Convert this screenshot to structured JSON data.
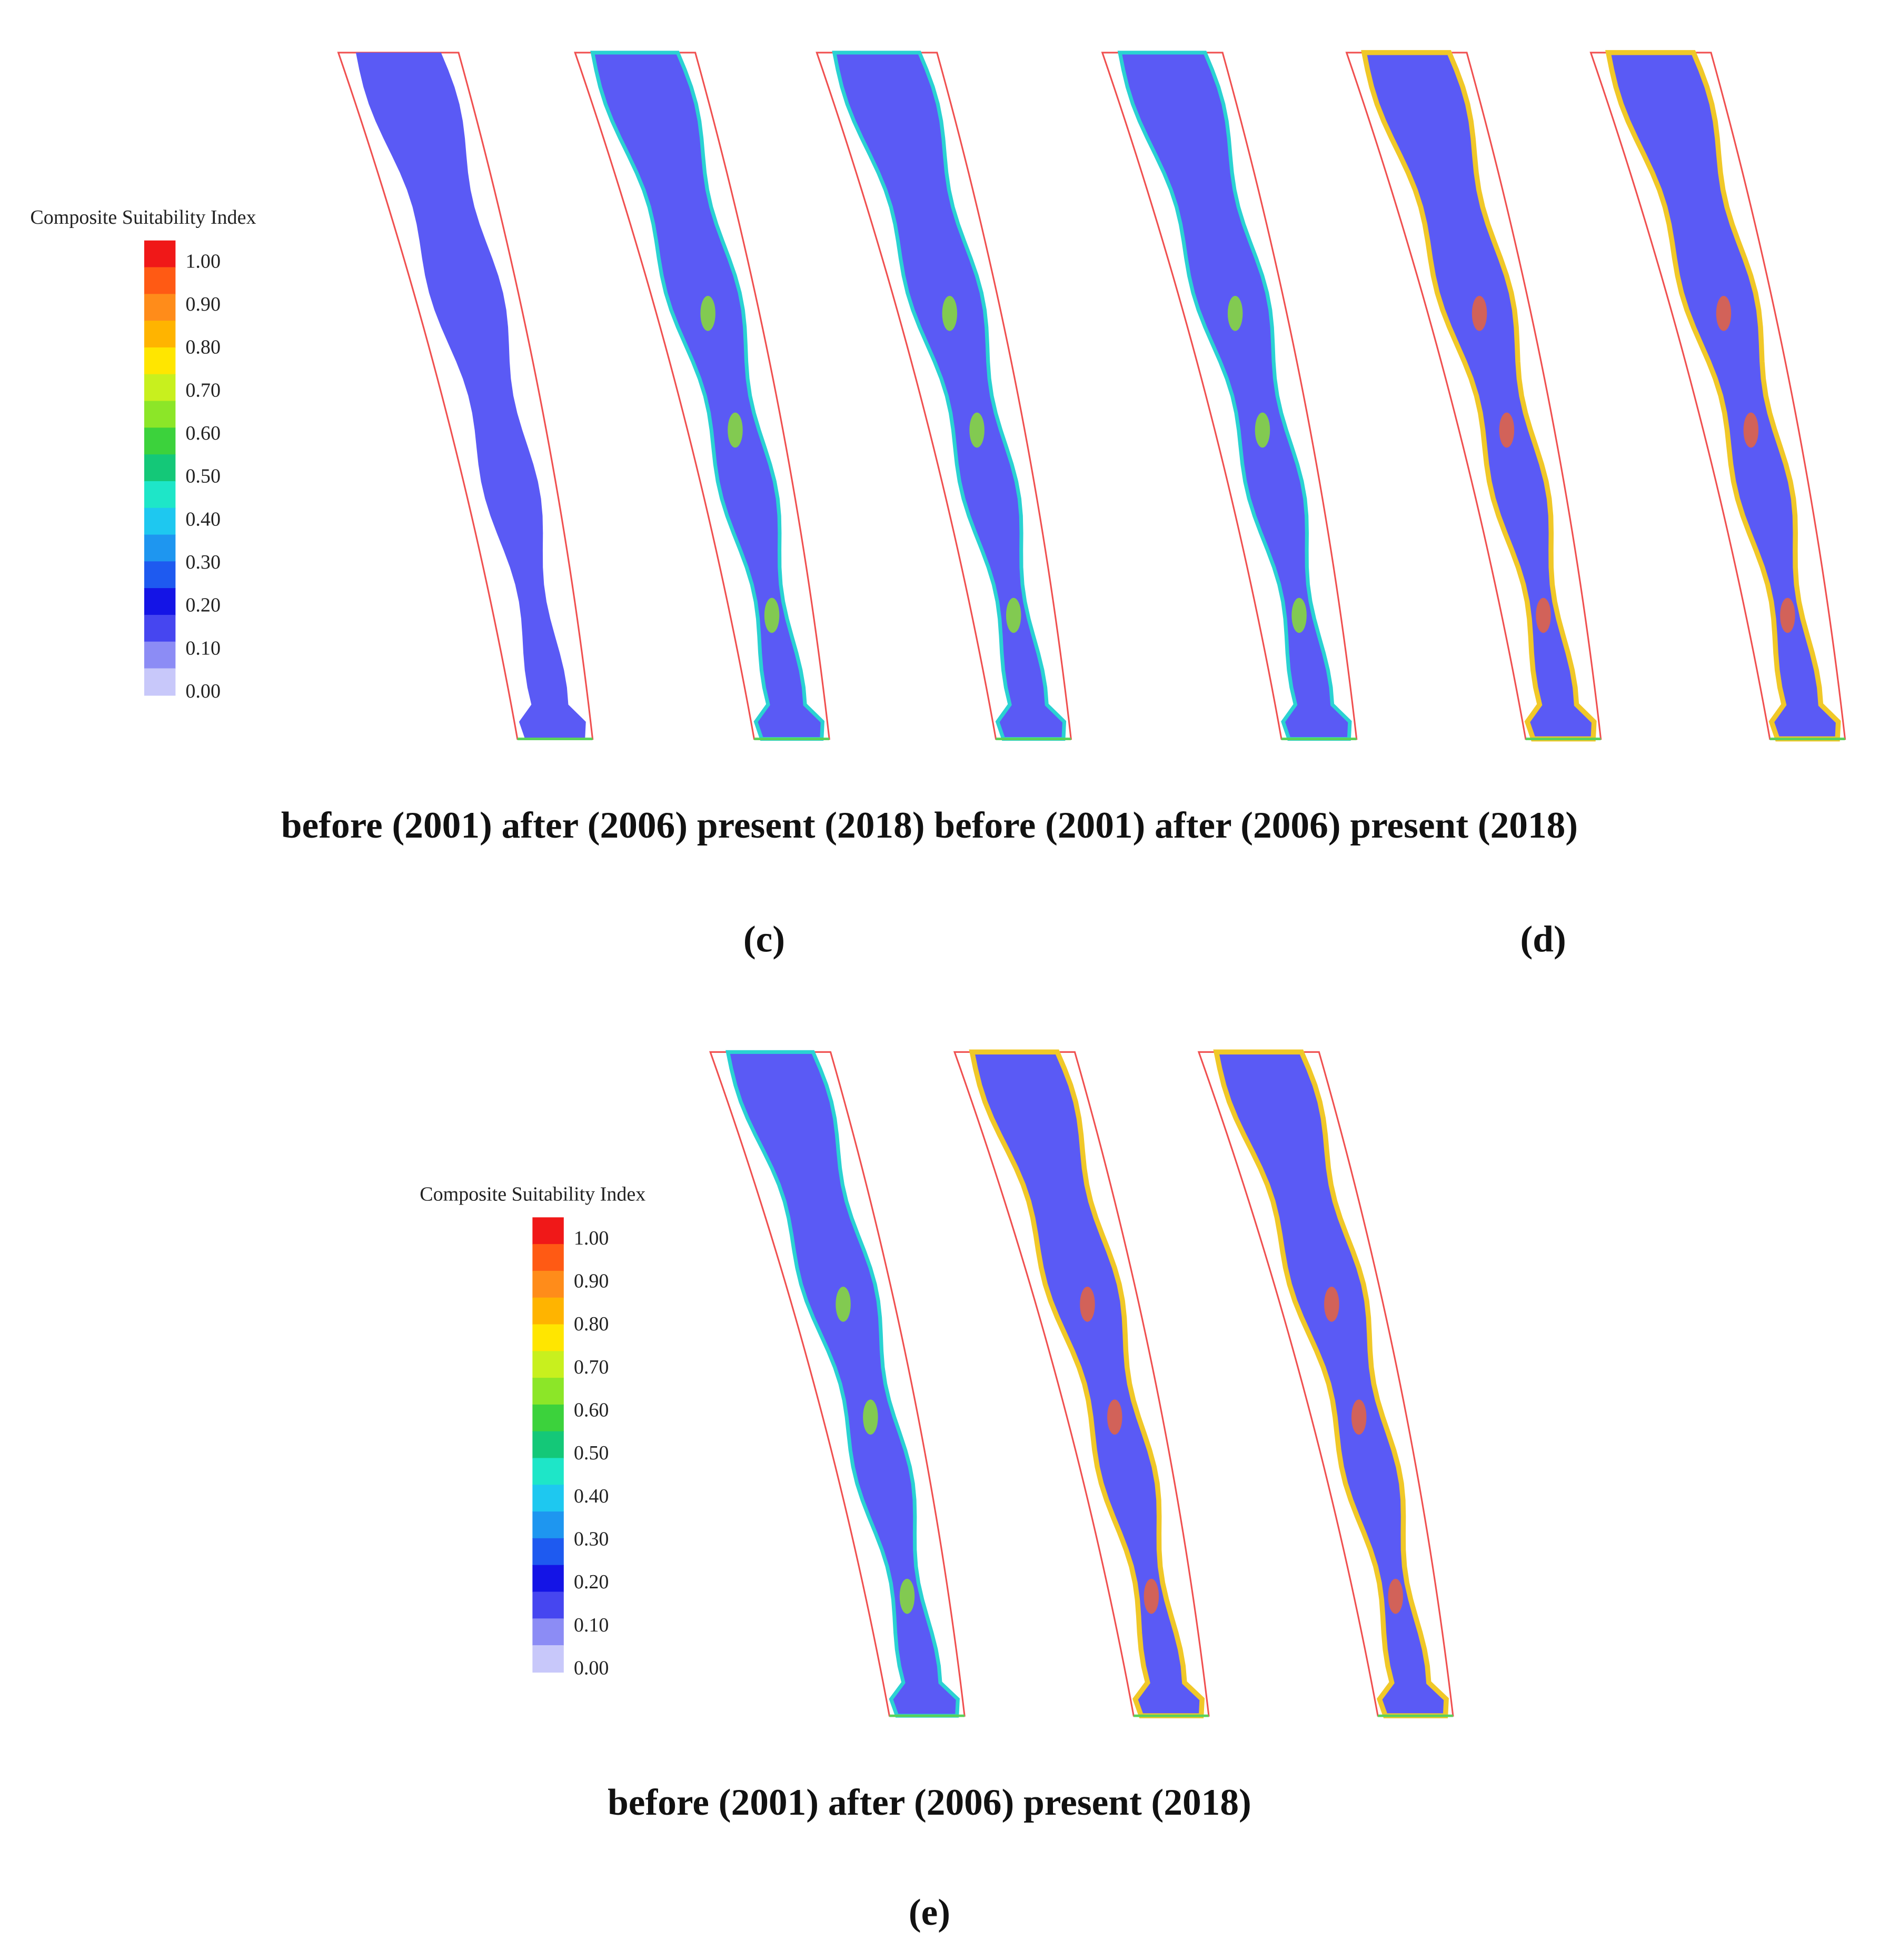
{
  "legends": [
    {
      "title": "Composite Suitability Index",
      "labels": [
        "1.00",
        "0.90",
        "0.80",
        "0.70",
        "0.60",
        "0.50",
        "0.40",
        "0.30",
        "0.20",
        "0.10",
        "0.00"
      ]
    },
    {
      "title": "Composite Suitability Index",
      "labels": [
        "1.00",
        "0.90",
        "0.80",
        "0.70",
        "0.60",
        "0.50",
        "0.40",
        "0.30",
        "0.20",
        "0.10",
        "0.00"
      ]
    }
  ],
  "rows": [
    {
      "caption": "before (2001) after (2006) present (2018) before (2001) after (2006) present (2018)",
      "panels": [
        "(c)",
        "(d)"
      ]
    },
    {
      "caption": "before (2001) after (2006) present (2018)",
      "panels": [
        "(e)"
      ]
    }
  ]
}
